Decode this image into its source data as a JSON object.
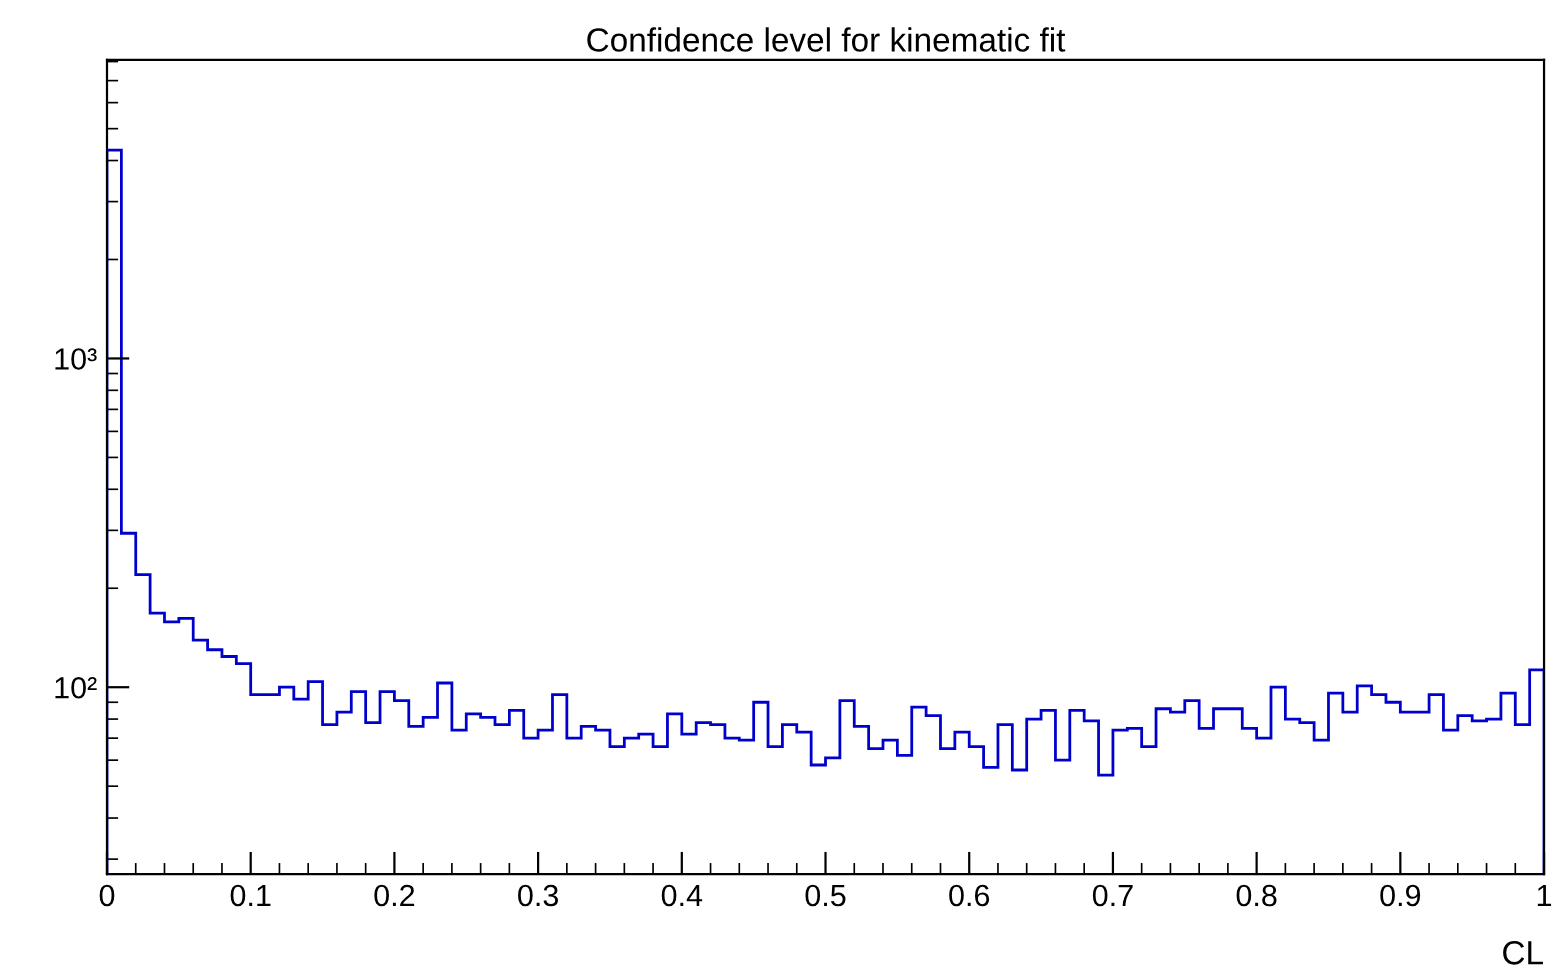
{
  "chart_data": {
    "type": "histogram",
    "title": "Confidence level for kinematic fit",
    "xlabel": "CL",
    "bins": [
      0,
      0.01,
      0.02,
      0.03,
      0.04,
      0.05,
      0.06,
      0.07,
      0.08,
      0.09,
      0.1,
      0.11,
      0.12,
      0.13,
      0.14,
      0.15,
      0.16,
      0.17,
      0.18,
      0.19,
      0.2,
      0.21,
      0.22,
      0.23,
      0.24,
      0.25,
      0.26,
      0.27,
      0.28,
      0.29,
      0.3,
      0.31,
      0.32,
      0.33,
      0.34,
      0.35,
      0.36,
      0.37,
      0.38,
      0.39,
      0.4,
      0.41,
      0.42,
      0.43,
      0.44,
      0.45,
      0.46,
      0.47,
      0.48,
      0.49,
      0.5,
      0.51,
      0.52,
      0.53,
      0.54,
      0.55,
      0.56,
      0.57,
      0.58,
      0.59,
      0.6,
      0.61,
      0.62,
      0.63,
      0.64,
      0.65,
      0.66,
      0.67,
      0.68,
      0.69,
      0.7,
      0.71,
      0.72,
      0.73,
      0.74,
      0.75,
      0.76,
      0.77,
      0.78,
      0.79,
      0.8,
      0.81,
      0.82,
      0.83,
      0.84,
      0.85,
      0.86,
      0.87,
      0.88,
      0.89,
      0.9,
      0.91,
      0.92,
      0.93,
      0.94,
      0.95,
      0.96,
      0.97,
      0.98,
      0.99,
      1
    ],
    "values": [
      4300,
      294,
      220,
      168,
      158,
      162,
      139,
      130,
      124,
      118,
      95,
      95,
      100,
      92,
      104,
      77,
      84,
      97,
      78,
      97,
      91,
      76,
      81,
      103,
      74,
      83,
      81,
      77,
      85,
      70,
      74,
      95,
      70,
      76,
      74,
      66,
      70,
      72,
      66,
      83,
      72,
      78,
      77,
      70,
      69,
      90,
      66,
      77,
      73,
      58,
      61,
      91,
      76,
      65,
      69,
      62,
      87,
      82,
      65,
      73,
      66,
      57,
      77,
      56,
      80,
      85,
      60,
      85,
      79,
      54,
      74,
      75,
      66,
      86,
      84,
      91,
      75,
      86,
      86,
      75,
      70,
      100,
      80,
      78,
      69,
      96,
      84,
      101,
      95,
      90,
      84,
      84,
      95,
      74,
      82,
      79,
      80,
      96,
      77,
      113
    ],
    "color": "#0000cc",
    "log": true,
    "grid": false,
    "xlim": [
      0,
      1
    ],
    "ylim": [
      27,
      8100
    ],
    "xticks": [
      0,
      0.1,
      0.2,
      0.3,
      0.4,
      0.5,
      0.6,
      0.7,
      0.8,
      0.9,
      1
    ],
    "yticks": [
      {
        "value": 100,
        "label": "10²"
      },
      {
        "value": 1000,
        "label": "10³"
      }
    ]
  }
}
